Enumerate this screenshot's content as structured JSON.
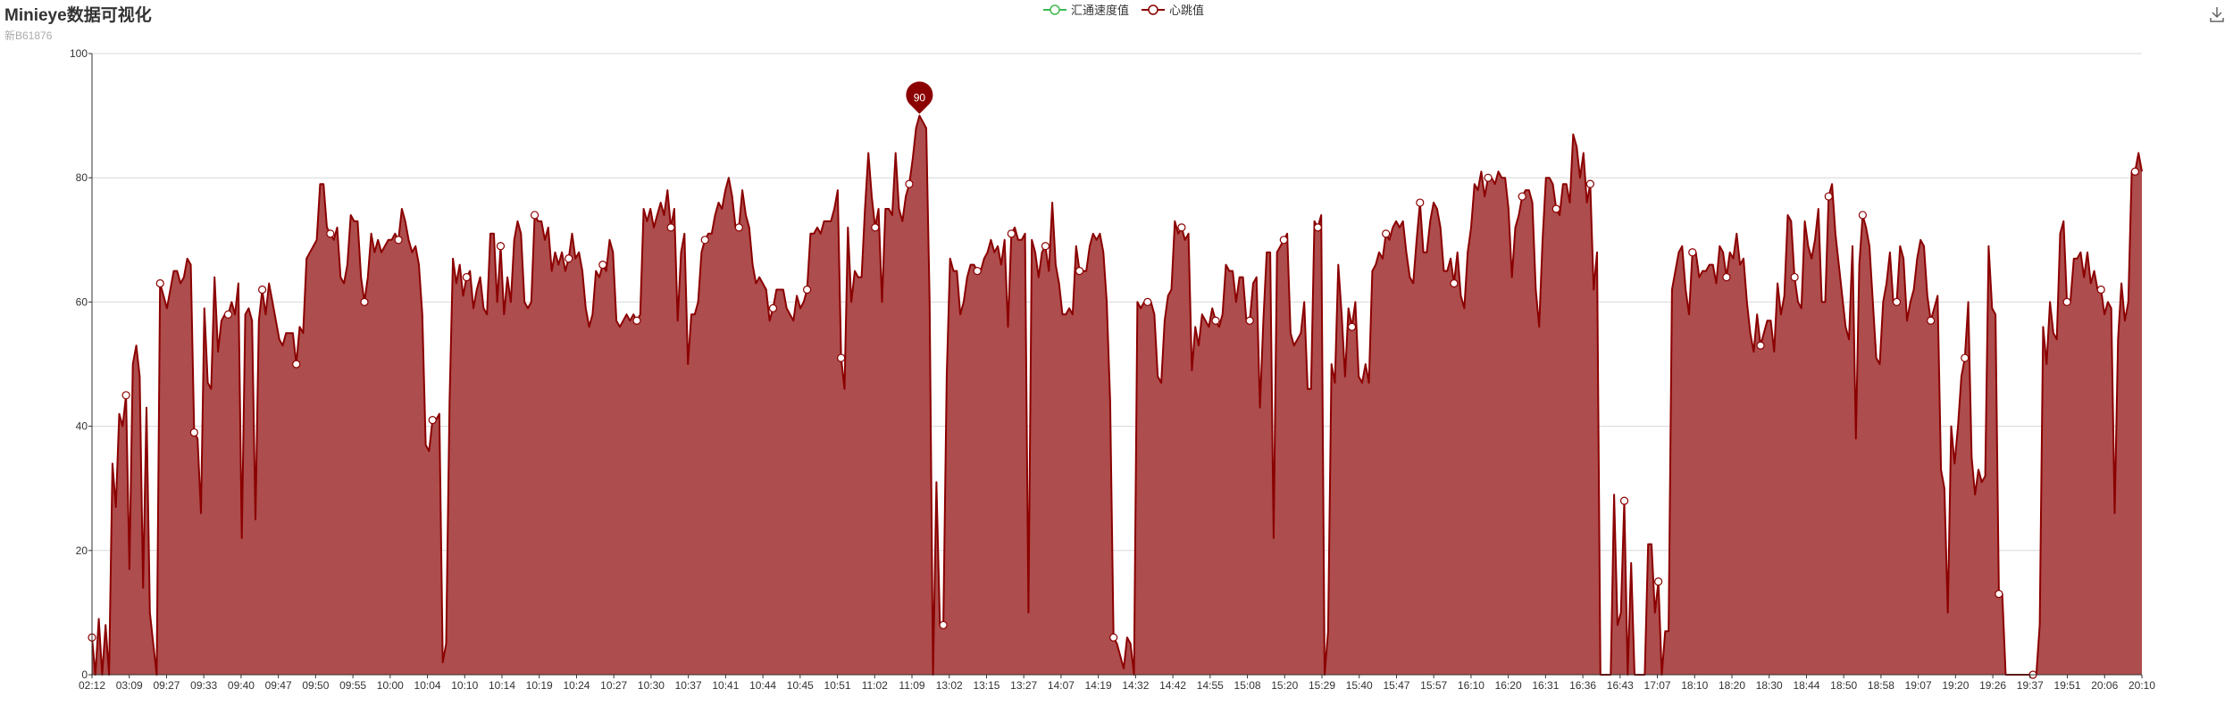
{
  "header": {
    "title": "Minieye数据可视化",
    "subtitle": "新B61876"
  },
  "toolbar": {
    "download_icon": "download-icon"
  },
  "colors": {
    "speed_series": "#3fb950",
    "heartbeat_series": "#8b0000",
    "heartbeat_area": "#ad4d4d",
    "axis": "#333333",
    "grid": "#d8d8d8"
  },
  "chart_data": {
    "type": "area",
    "title": "Minieye数据可视化",
    "subtitle": "新B61876",
    "xlabel": "",
    "ylabel": "",
    "ylim": [
      0,
      100
    ],
    "yticks": [
      0,
      20,
      40,
      60,
      80,
      100
    ],
    "grid": true,
    "legend_position": "top-center",
    "x_tick_labels": [
      "02:12",
      "03:09",
      "09:27",
      "09:33",
      "09:40",
      "09:47",
      "09:50",
      "09:55",
      "10:00",
      "10:04",
      "10:10",
      "10:14",
      "10:19",
      "10:24",
      "10:27",
      "10:30",
      "10:37",
      "10:41",
      "10:44",
      "10:45",
      "10:51",
      "11:02",
      "11:09",
      "13:02",
      "13:15",
      "13:27",
      "14:07",
      "14:19",
      "14:32",
      "14:42",
      "14:55",
      "15:08",
      "15:20",
      "15:29",
      "15:40",
      "15:47",
      "15:57",
      "16:10",
      "16:20",
      "16:31",
      "16:36",
      "16:43",
      "17:07",
      "18:10",
      "18:20",
      "18:30",
      "18:44",
      "18:50",
      "18:58",
      "19:07",
      "19:20",
      "19:26",
      "19:37",
      "19:51",
      "20:06",
      "20:10"
    ],
    "max_marker": {
      "value": 90,
      "label": "90"
    },
    "series": [
      {
        "name": "汇通速度值",
        "values": []
      },
      {
        "name": "心跳值",
        "values": [
          6,
          0,
          9,
          0,
          8,
          0,
          34,
          27,
          42,
          40,
          45,
          17,
          50,
          53,
          48,
          14,
          43,
          10,
          5,
          0,
          63,
          61,
          59,
          62,
          65,
          65,
          63,
          64,
          67,
          66,
          39,
          38,
          26,
          59,
          47,
          46,
          64,
          52,
          57,
          58,
          58,
          60,
          58,
          63,
          22,
          58,
          59,
          57,
          25,
          57,
          62,
          58,
          63,
          60,
          57,
          54,
          53,
          55,
          55,
          55,
          50,
          56,
          55,
          67,
          68,
          69,
          70,
          79,
          79,
          72,
          71,
          70,
          72,
          64,
          63,
          66,
          74,
          73,
          73,
          64,
          60,
          64,
          71,
          68,
          70,
          68,
          69,
          70,
          70,
          71,
          70,
          75,
          73,
          70,
          68,
          69,
          66,
          58,
          37,
          36,
          41,
          41,
          42,
          2,
          5,
          44,
          67,
          63,
          66,
          61,
          64,
          65,
          59,
          62,
          64,
          59,
          58,
          71,
          71,
          60,
          69,
          58,
          64,
          60,
          70,
          73,
          71,
          60,
          59,
          60,
          74,
          73,
          73,
          70,
          72,
          65,
          68,
          66,
          68,
          65,
          67,
          71,
          67,
          68,
          65,
          59,
          56,
          58,
          65,
          64,
          66,
          65,
          70,
          68,
          57,
          56,
          57,
          58,
          57,
          58,
          57,
          58,
          75,
          73,
          75,
          72,
          74,
          76,
          74,
          78,
          72,
          75,
          57,
          68,
          71,
          50,
          58,
          58,
          60,
          68,
          70,
          71,
          71,
          74,
          76,
          75,
          78,
          80,
          77,
          72,
          72,
          78,
          74,
          72,
          66,
          63,
          64,
          63,
          62,
          57,
          59,
          62,
          62,
          62,
          59,
          58,
          57,
          61,
          59,
          60,
          62,
          71,
          71,
          72,
          71,
          73,
          73,
          73,
          75,
          78,
          51,
          46,
          72,
          60,
          65,
          64,
          64,
          75,
          84,
          77,
          72,
          75,
          60,
          75,
          75,
          74,
          84,
          75,
          73,
          77,
          79,
          83,
          88,
          90,
          89,
          88,
          60,
          0,
          31,
          8,
          8,
          48,
          67,
          65,
          65,
          58,
          60,
          64,
          66,
          66,
          65,
          65,
          67,
          68,
          70,
          68,
          69,
          66,
          70,
          56,
          71,
          72,
          70,
          70,
          71,
          10,
          70,
          68,
          64,
          68,
          69,
          65,
          76,
          66,
          63,
          58,
          58,
          59,
          58,
          69,
          65,
          65,
          65,
          69,
          71,
          70,
          71,
          68,
          60,
          44,
          6,
          5,
          3,
          1,
          6,
          5,
          0,
          60,
          59,
          60,
          60,
          60,
          58,
          48,
          47,
          57,
          61,
          62,
          73,
          71,
          72,
          70,
          71,
          49,
          56,
          53,
          58,
          57,
          56,
          59,
          57,
          56,
          58,
          66,
          65,
          65,
          60,
          64,
          64,
          57,
          57,
          63,
          64,
          43,
          57,
          68,
          68,
          22,
          68,
          69,
          70,
          71,
          55,
          53,
          54,
          55,
          60,
          46,
          46,
          73,
          72,
          74,
          0,
          7,
          50,
          47,
          66,
          58,
          48,
          59,
          56,
          60,
          48,
          47,
          50,
          47,
          65,
          66,
          68,
          67,
          71,
          70,
          72,
          73,
          72,
          73,
          68,
          64,
          63,
          70,
          76,
          68,
          68,
          73,
          76,
          75,
          72,
          65,
          65,
          67,
          63,
          68,
          61,
          59,
          68,
          72,
          79,
          78,
          81,
          77,
          80,
          80,
          79,
          81,
          80,
          80,
          75,
          64,
          72,
          74,
          77,
          78,
          78,
          76,
          62,
          56,
          70,
          80,
          80,
          79,
          75,
          74,
          79,
          79,
          76,
          87,
          85,
          80,
          84,
          76,
          79,
          62,
          68,
          0,
          0,
          0,
          0,
          29,
          8,
          10,
          28,
          0,
          18,
          0,
          0,
          0,
          0,
          21,
          21,
          10,
          15,
          0,
          7,
          7,
          62,
          65,
          68,
          69,
          62,
          58,
          68,
          68,
          64,
          65,
          65,
          66,
          66,
          63,
          69,
          68,
          64,
          68,
          67,
          71,
          66,
          67,
          60,
          55,
          52,
          58,
          53,
          55,
          57,
          57,
          52,
          63,
          58,
          61,
          74,
          73,
          64,
          60,
          59,
          73,
          69,
          67,
          70,
          75,
          60,
          60,
          77,
          79,
          71,
          66,
          61,
          56,
          54,
          69,
          38,
          66,
          74,
          72,
          69,
          60,
          51,
          50,
          60,
          63,
          68,
          60,
          60,
          69,
          67,
          57,
          60,
          62,
          67,
          70,
          69,
          61,
          57,
          59,
          61,
          33,
          30,
          10,
          40,
          34,
          40,
          48,
          51,
          60,
          35,
          29,
          33,
          31,
          32,
          69,
          59,
          58,
          13,
          13,
          0,
          0,
          0,
          0,
          0,
          0,
          0,
          0,
          0,
          0,
          8,
          56,
          50,
          60,
          55,
          54,
          71,
          73,
          60,
          60,
          67,
          67,
          68,
          64,
          68,
          63,
          65,
          62,
          62,
          58,
          60,
          59,
          26,
          54,
          63,
          57,
          60,
          81,
          81,
          84,
          81
        ]
      }
    ]
  }
}
